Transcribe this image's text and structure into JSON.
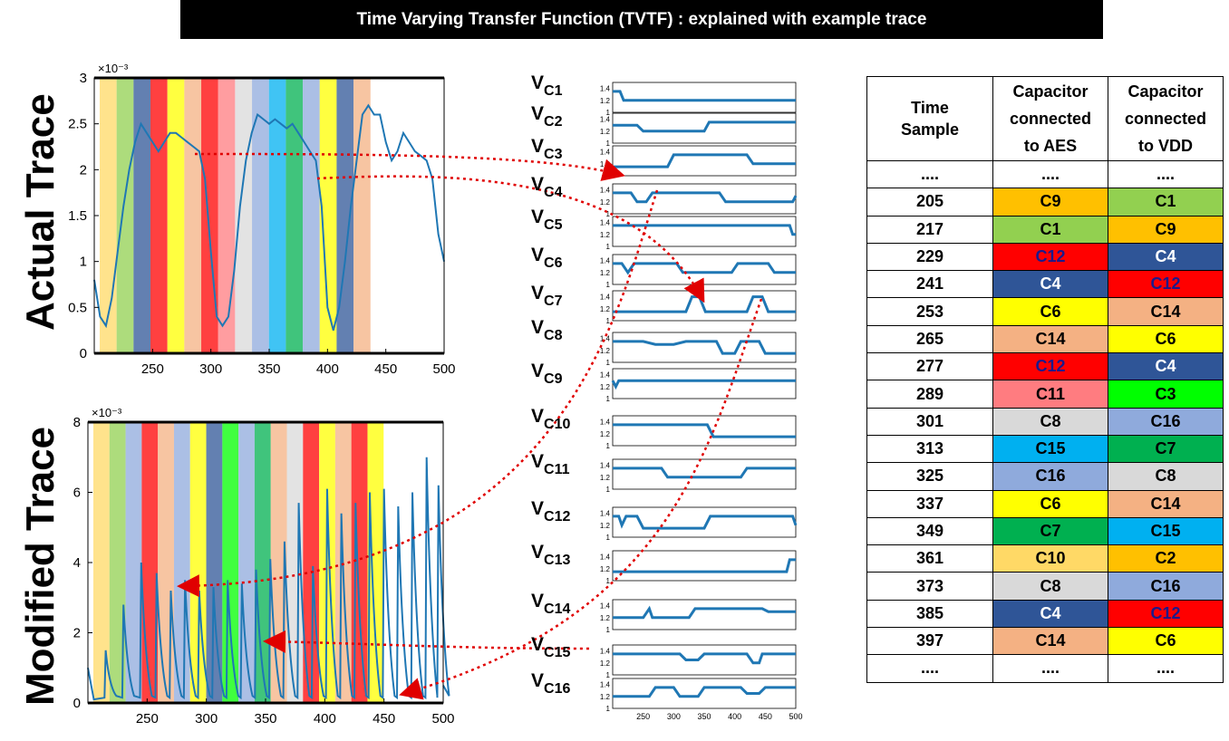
{
  "title": "Time Varying Transfer Function (TVTF) : explained with example  trace",
  "labels": {
    "actual": "Actual Trace",
    "modified": "Modified Trace"
  },
  "colors": {
    "C1": "#92d050",
    "C2": "#ffc000",
    "C3": "#00ff00",
    "C4": "#2f5597",
    "C6": "#ffff00",
    "C7": "#00b050",
    "C8": "#d9d9d9",
    "C9": "#ffc000",
    "C10": "#ffd966",
    "C11": "#ff7c80",
    "C12": "#ff0000",
    "C14": "#f4b183",
    "C15": "#00b0f0",
    "C16": "#8faadc",
    "trace": "#1f77b4",
    "arrow": "#e00000"
  },
  "table": {
    "headers": [
      "Time\nSample",
      "Capacitor\nconnected\nto AES",
      "Capacitor\nconnected\nto VDD"
    ],
    "rows": [
      [
        "....",
        "....",
        "...."
      ],
      [
        "205",
        "C9",
        "C1"
      ],
      [
        "217",
        "C1",
        "C9"
      ],
      [
        "229",
        "C12",
        "C4"
      ],
      [
        "241",
        "C4",
        "C12"
      ],
      [
        "253",
        "C6",
        "C14"
      ],
      [
        "265",
        "C14",
        "C6"
      ],
      [
        "277",
        "C12",
        "C4"
      ],
      [
        "289",
        "C11",
        "C3"
      ],
      [
        "301",
        "C8",
        "C16"
      ],
      [
        "313",
        "C15",
        "C7"
      ],
      [
        "325",
        "C16",
        "C8"
      ],
      [
        "337",
        "C6",
        "C14"
      ],
      [
        "349",
        "C7",
        "C15"
      ],
      [
        "361",
        "C10",
        "C2"
      ],
      [
        "373",
        "C8",
        "C16"
      ],
      [
        "385",
        "C4",
        "C12"
      ],
      [
        "397",
        "C14",
        "C6"
      ],
      [
        "....",
        "....",
        "...."
      ]
    ]
  },
  "vc_labels": [
    "V",
    "V",
    "V",
    "V",
    "V",
    "V",
    "V",
    "V",
    "V",
    "V",
    "V",
    "V",
    "V",
    "V",
    "V",
    "V"
  ],
  "vc_subs": [
    "C1",
    "C2",
    "C3",
    "C4",
    "C5",
    "C6",
    "C7",
    "C8",
    "C9",
    "C10",
    "C11",
    "C12",
    "C13",
    "C14",
    "C15",
    "C16"
  ],
  "chart_data": [
    {
      "type": "line",
      "title": "",
      "xlabel": "",
      "ylabel": "",
      "xticks": [
        "250",
        "300",
        "350",
        "400",
        "450",
        "500"
      ],
      "yticks": [
        "0",
        "0.5",
        "1",
        "1.5",
        "2",
        "2.5",
        "3"
      ],
      "yexp": "×10⁻³",
      "xlim": [
        200,
        500
      ],
      "ylim": [
        0,
        3
      ],
      "bands": [
        "C10",
        "C1",
        "C4",
        "C12",
        "C6",
        "C14",
        "C12",
        "C11",
        "C8",
        "C16",
        "C15",
        "C7",
        "C16",
        "C6",
        "C4",
        "C14"
      ],
      "x": [
        200,
        205,
        210,
        215,
        220,
        225,
        230,
        235,
        240,
        245,
        250,
        255,
        260,
        265,
        270,
        275,
        280,
        285,
        290,
        295,
        300,
        305,
        310,
        315,
        320,
        325,
        330,
        335,
        340,
        345,
        350,
        355,
        360,
        365,
        370,
        375,
        380,
        385,
        390,
        395,
        400,
        405,
        410,
        415,
        420,
        425,
        430,
        435,
        440,
        445,
        450,
        455,
        460,
        465,
        470,
        475,
        480,
        485,
        490,
        495,
        500
      ],
      "y": [
        0.8,
        0.4,
        0.3,
        0.6,
        1.1,
        1.6,
        2.0,
        2.3,
        2.5,
        2.4,
        2.3,
        2.2,
        2.3,
        2.4,
        2.4,
        2.35,
        2.3,
        2.25,
        2.2,
        1.9,
        1.1,
        0.4,
        0.3,
        0.4,
        0.9,
        1.6,
        2.1,
        2.4,
        2.6,
        2.55,
        2.5,
        2.55,
        2.5,
        2.45,
        2.5,
        2.4,
        2.3,
        2.2,
        2.1,
        1.6,
        0.5,
        0.25,
        0.5,
        1.0,
        1.6,
        2.1,
        2.6,
        2.7,
        2.6,
        2.6,
        2.3,
        2.1,
        2.2,
        2.4,
        2.3,
        2.2,
        2.15,
        2.1,
        1.9,
        1.3,
        1.0
      ]
    },
    {
      "type": "line",
      "title": "",
      "xlabel": "",
      "ylabel": "",
      "xticks": [
        "250",
        "300",
        "350",
        "400",
        "450",
        "500"
      ],
      "yticks": [
        "0",
        "2",
        "4",
        "6",
        "8"
      ],
      "yexp": "×10⁻³",
      "xlim": [
        200,
        500
      ],
      "ylim": [
        0,
        8
      ],
      "bands": [
        "C10",
        "C1",
        "C16",
        "C12",
        "C14",
        "C16",
        "C6",
        "C4",
        "C3",
        "C16",
        "C7",
        "C14",
        "C8",
        "C12",
        "C6",
        "C14",
        "C12",
        "C6"
      ],
      "spikes": [
        [
          215,
          1.5
        ],
        [
          230,
          2.8
        ],
        [
          245,
          4.0
        ],
        [
          258,
          3.7
        ],
        [
          270,
          3.2
        ],
        [
          282,
          3.5
        ],
        [
          294,
          3.2
        ],
        [
          306,
          3.3
        ],
        [
          318,
          3.5
        ],
        [
          330,
          3.4
        ],
        [
          342,
          3.8
        ],
        [
          354,
          4.1
        ],
        [
          366,
          4.6
        ],
        [
          378,
          5.7
        ],
        [
          390,
          3.9
        ],
        [
          402,
          6.1
        ],
        [
          414,
          5.4
        ],
        [
          426,
          5.7
        ],
        [
          438,
          6.0
        ],
        [
          450,
          6.1
        ],
        [
          462,
          5.6
        ],
        [
          474,
          6.0
        ],
        [
          486,
          7.0
        ],
        [
          496,
          6.2
        ]
      ]
    },
    {
      "type": "line",
      "title": "",
      "vc_series": [
        [
          [
            200,
            1.35
          ],
          [
            212,
            1.35
          ],
          [
            218,
            1.2
          ],
          [
            500,
            1.2
          ]
        ],
        [
          [
            200,
            1.3
          ],
          [
            240,
            1.3
          ],
          [
            250,
            1.2
          ],
          [
            350,
            1.2
          ],
          [
            358,
            1.35
          ],
          [
            500,
            1.35
          ]
        ],
        [
          [
            200,
            1.15
          ],
          [
            290,
            1.15
          ],
          [
            300,
            1.35
          ],
          [
            420,
            1.35
          ],
          [
            430,
            1.2
          ],
          [
            500,
            1.2
          ]
        ],
        [
          [
            200,
            1.35
          ],
          [
            230,
            1.35
          ],
          [
            240,
            1.2
          ],
          [
            255,
            1.2
          ],
          [
            265,
            1.35
          ],
          [
            375,
            1.35
          ],
          [
            385,
            1.2
          ],
          [
            495,
            1.2
          ],
          [
            500,
            1.3
          ]
        ],
        [
          [
            200,
            1.35
          ],
          [
            490,
            1.35
          ],
          [
            495,
            1.2
          ],
          [
            500,
            1.2
          ]
        ],
        [
          [
            200,
            1.35
          ],
          [
            215,
            1.35
          ],
          [
            225,
            1.2
          ],
          [
            235,
            1.35
          ],
          [
            305,
            1.35
          ],
          [
            315,
            1.2
          ],
          [
            395,
            1.2
          ],
          [
            405,
            1.35
          ],
          [
            455,
            1.35
          ],
          [
            465,
            1.2
          ],
          [
            500,
            1.2
          ]
        ],
        [
          [
            200,
            1.15
          ],
          [
            320,
            1.15
          ],
          [
            330,
            1.4
          ],
          [
            342,
            1.4
          ],
          [
            352,
            1.15
          ],
          [
            420,
            1.15
          ],
          [
            430,
            1.4
          ],
          [
            445,
            1.4
          ],
          [
            455,
            1.15
          ],
          [
            500,
            1.15
          ]
        ],
        [
          [
            200,
            1.35
          ],
          [
            250,
            1.35
          ],
          [
            270,
            1.3
          ],
          [
            300,
            1.3
          ],
          [
            320,
            1.35
          ],
          [
            370,
            1.35
          ],
          [
            380,
            1.15
          ],
          [
            400,
            1.15
          ],
          [
            410,
            1.35
          ],
          [
            440,
            1.35
          ],
          [
            450,
            1.15
          ],
          [
            500,
            1.15
          ]
        ],
        [
          [
            200,
            1.3
          ],
          [
            205,
            1.2
          ],
          [
            210,
            1.3
          ],
          [
            500,
            1.3
          ]
        ],
        [
          [
            200,
            1.35
          ],
          [
            355,
            1.35
          ],
          [
            365,
            1.15
          ],
          [
            500,
            1.15
          ]
        ],
        [
          [
            200,
            1.35
          ],
          [
            280,
            1.35
          ],
          [
            290,
            1.2
          ],
          [
            410,
            1.2
          ],
          [
            420,
            1.35
          ],
          [
            500,
            1.35
          ]
        ],
        [
          [
            200,
            1.35
          ],
          [
            210,
            1.35
          ],
          [
            215,
            1.2
          ],
          [
            222,
            1.35
          ],
          [
            240,
            1.35
          ],
          [
            250,
            1.15
          ],
          [
            350,
            1.15
          ],
          [
            360,
            1.35
          ],
          [
            495,
            1.35
          ],
          [
            500,
            1.2
          ]
        ],
        [
          [
            200,
            1.15
          ],
          [
            485,
            1.15
          ],
          [
            490,
            1.35
          ],
          [
            500,
            1.35
          ]
        ],
        [
          [
            200,
            1.2
          ],
          [
            250,
            1.2
          ],
          [
            260,
            1.35
          ],
          [
            265,
            1.2
          ],
          [
            325,
            1.2
          ],
          [
            335,
            1.35
          ],
          [
            445,
            1.35
          ],
          [
            455,
            1.3
          ],
          [
            500,
            1.3
          ]
        ],
        [
          [
            200,
            1.35
          ],
          [
            310,
            1.35
          ],
          [
            320,
            1.25
          ],
          [
            340,
            1.25
          ],
          [
            350,
            1.35
          ],
          [
            420,
            1.35
          ],
          [
            430,
            1.2
          ],
          [
            440,
            1.2
          ],
          [
            445,
            1.35
          ],
          [
            500,
            1.35
          ]
        ],
        [
          [
            200,
            1.2
          ],
          [
            260,
            1.2
          ],
          [
            270,
            1.35
          ],
          [
            300,
            1.35
          ],
          [
            310,
            1.2
          ],
          [
            340,
            1.2
          ],
          [
            350,
            1.35
          ],
          [
            410,
            1.35
          ],
          [
            420,
            1.25
          ],
          [
            440,
            1.25
          ],
          [
            450,
            1.35
          ],
          [
            500,
            1.35
          ]
        ]
      ],
      "xticks": [
        "250",
        "300",
        "350",
        "400",
        "450",
        "500"
      ],
      "yticks": [
        "1",
        "1.2",
        "1.4"
      ]
    }
  ]
}
